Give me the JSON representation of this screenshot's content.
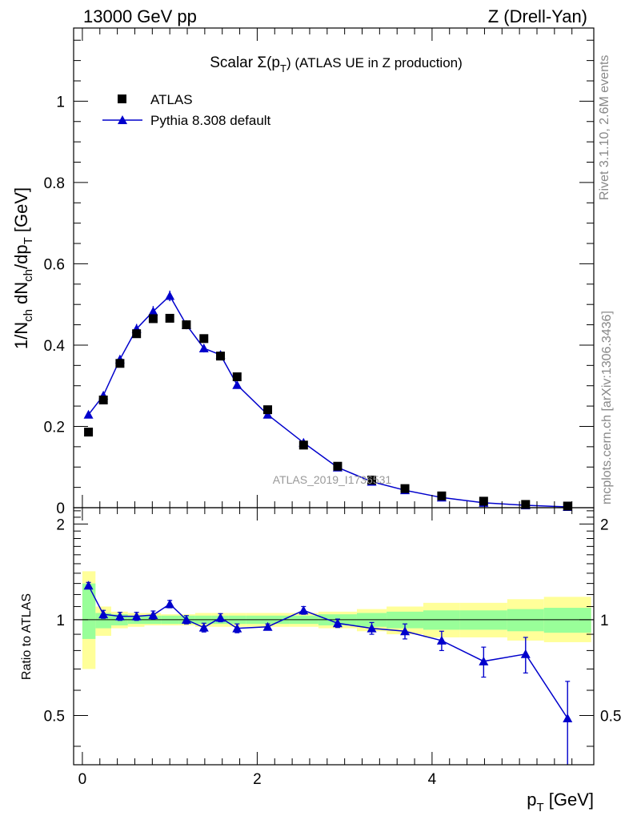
{
  "header": {
    "left": "13000 GeV pp",
    "right": "Z (Drell-Yan)"
  },
  "side_labels": {
    "rivet": "Rivet 3.1.10,  2.6M events",
    "mcplots": "mcplots.cern.ch [arXiv:1306.3436]"
  },
  "watermark": "ATLAS_2019_I1736531",
  "colors": {
    "data": "#000000",
    "mc": "#0000cc",
    "band_inner": "#99ff99",
    "band_outer": "#ffff99"
  },
  "chart_data": [
    {
      "type": "scatter",
      "panel": "main",
      "title": "Scalar Σ(p",
      "title_sub": "T",
      "title_suffix": ") (ATLAS UE in Z production)",
      "ylabel": "1/N",
      "ylabel_sub1": "ch",
      "ylabel_mid": " dN",
      "ylabel_sub2": "ch",
      "ylabel_mid2": "/dp",
      "ylabel_sub3": "T",
      "ylabel_suffix": " [GeV]",
      "xlim": [
        -0.1,
        5.85
      ],
      "ylim": [
        0,
        1.18
      ],
      "yticks": [
        0,
        0.2,
        0.4,
        0.6,
        0.8,
        1
      ],
      "ytick_labels": [
        "0",
        "0.2",
        "0.4",
        "0.6",
        "0.8",
        "1"
      ],
      "legend_position": "top-left",
      "series": [
        {
          "name": "ATLAS",
          "marker": "square",
          "x": [
            0.07,
            0.24,
            0.43,
            0.62,
            0.81,
            1.0,
            1.19,
            1.39,
            1.58,
            1.77,
            2.12,
            2.53,
            2.92,
            3.31,
            3.69,
            4.11,
            4.59,
            5.07,
            5.55
          ],
          "values": [
            0.186,
            0.265,
            0.355,
            0.428,
            0.465,
            0.466,
            0.45,
            0.416,
            0.373,
            0.322,
            0.241,
            0.154,
            0.102,
            0.068,
            0.047,
            0.029,
            0.016,
            0.008,
            0.004
          ]
        },
        {
          "name": "Pythia 8.308 default",
          "marker": "triangle",
          "x": [
            0.07,
            0.24,
            0.43,
            0.62,
            0.81,
            1.0,
            1.19,
            1.39,
            1.58,
            1.77,
            2.12,
            2.53,
            2.92,
            3.31,
            3.69,
            4.11,
            4.59,
            5.07,
            5.55
          ],
          "values": [
            0.229,
            0.276,
            0.365,
            0.44,
            0.483,
            0.521,
            0.45,
            0.392,
            0.376,
            0.302,
            0.229,
            0.16,
            0.099,
            0.064,
            0.043,
            0.025,
            0.012,
            0.006,
            0.002
          ],
          "errors": [
            0.008,
            0.008,
            0.01,
            0.012,
            0.013,
            0.013,
            0.011,
            0.01,
            0.01,
            0.008,
            0.006,
            0.005,
            0.003,
            0.002,
            0.002,
            0.001,
            0.001,
            0.001,
            0.001
          ]
        }
      ]
    },
    {
      "type": "line",
      "panel": "ratio",
      "ylabel": "Ratio to ATLAS",
      "xlabel": "p",
      "xlabel_sub": "T",
      "xlabel_suffix": " [GeV]",
      "xlim": [
        -0.1,
        5.85
      ],
      "ylim": [
        0.35,
        2.25
      ],
      "xticks": [
        0,
        2,
        4
      ],
      "xtick_labels": [
        "0",
        "2",
        "4"
      ],
      "yticks": [
        0.5,
        1,
        2
      ],
      "ytick_labels": [
        "0.5",
        "1",
        "2"
      ],
      "bands": {
        "edges": [
          0.0,
          0.15,
          0.33,
          0.52,
          0.71,
          0.9,
          1.1,
          1.29,
          1.48,
          1.67,
          1.87,
          2.37,
          2.7,
          3.14,
          3.48,
          3.9,
          4.32,
          4.86,
          5.28,
          5.82
        ],
        "inner_lo": [
          0.87,
          0.94,
          0.96,
          0.97,
          0.97,
          0.97,
          0.97,
          0.97,
          0.97,
          0.97,
          0.97,
          0.97,
          0.96,
          0.95,
          0.94,
          0.93,
          0.93,
          0.92,
          0.91
        ],
        "inner_hi": [
          1.3,
          1.05,
          1.04,
          1.03,
          1.03,
          1.03,
          1.03,
          1.03,
          1.03,
          1.03,
          1.03,
          1.03,
          1.04,
          1.05,
          1.06,
          1.07,
          1.07,
          1.08,
          1.09
        ],
        "outer_lo": [
          0.7,
          0.89,
          0.94,
          0.95,
          0.96,
          0.96,
          0.96,
          0.95,
          0.95,
          0.95,
          0.95,
          0.95,
          0.94,
          0.92,
          0.9,
          0.88,
          0.88,
          0.86,
          0.85
        ],
        "outer_hi": [
          1.42,
          1.1,
          1.06,
          1.05,
          1.05,
          1.04,
          1.04,
          1.05,
          1.05,
          1.05,
          1.05,
          1.05,
          1.06,
          1.08,
          1.1,
          1.13,
          1.13,
          1.16,
          1.18
        ]
      },
      "series": [
        {
          "name": "Pythia 8.308 default",
          "x": [
            0.07,
            0.24,
            0.43,
            0.62,
            0.81,
            1.0,
            1.19,
            1.39,
            1.58,
            1.77,
            2.12,
            2.53,
            2.92,
            3.31,
            3.69,
            4.11,
            4.59,
            5.07,
            5.55
          ],
          "values": [
            1.28,
            1.04,
            1.025,
            1.025,
            1.035,
            1.12,
            1.0,
            0.945,
            1.015,
            0.94,
            0.95,
            1.07,
            0.975,
            0.94,
            0.92,
            0.86,
            0.74,
            0.78,
            0.49
          ],
          "errors": [
            0.03,
            0.03,
            0.03,
            0.03,
            0.03,
            0.03,
            0.03,
            0.03,
            0.03,
            0.03,
            0.02,
            0.03,
            0.03,
            0.04,
            0.05,
            0.06,
            0.08,
            0.1,
            0.15
          ]
        }
      ]
    }
  ]
}
